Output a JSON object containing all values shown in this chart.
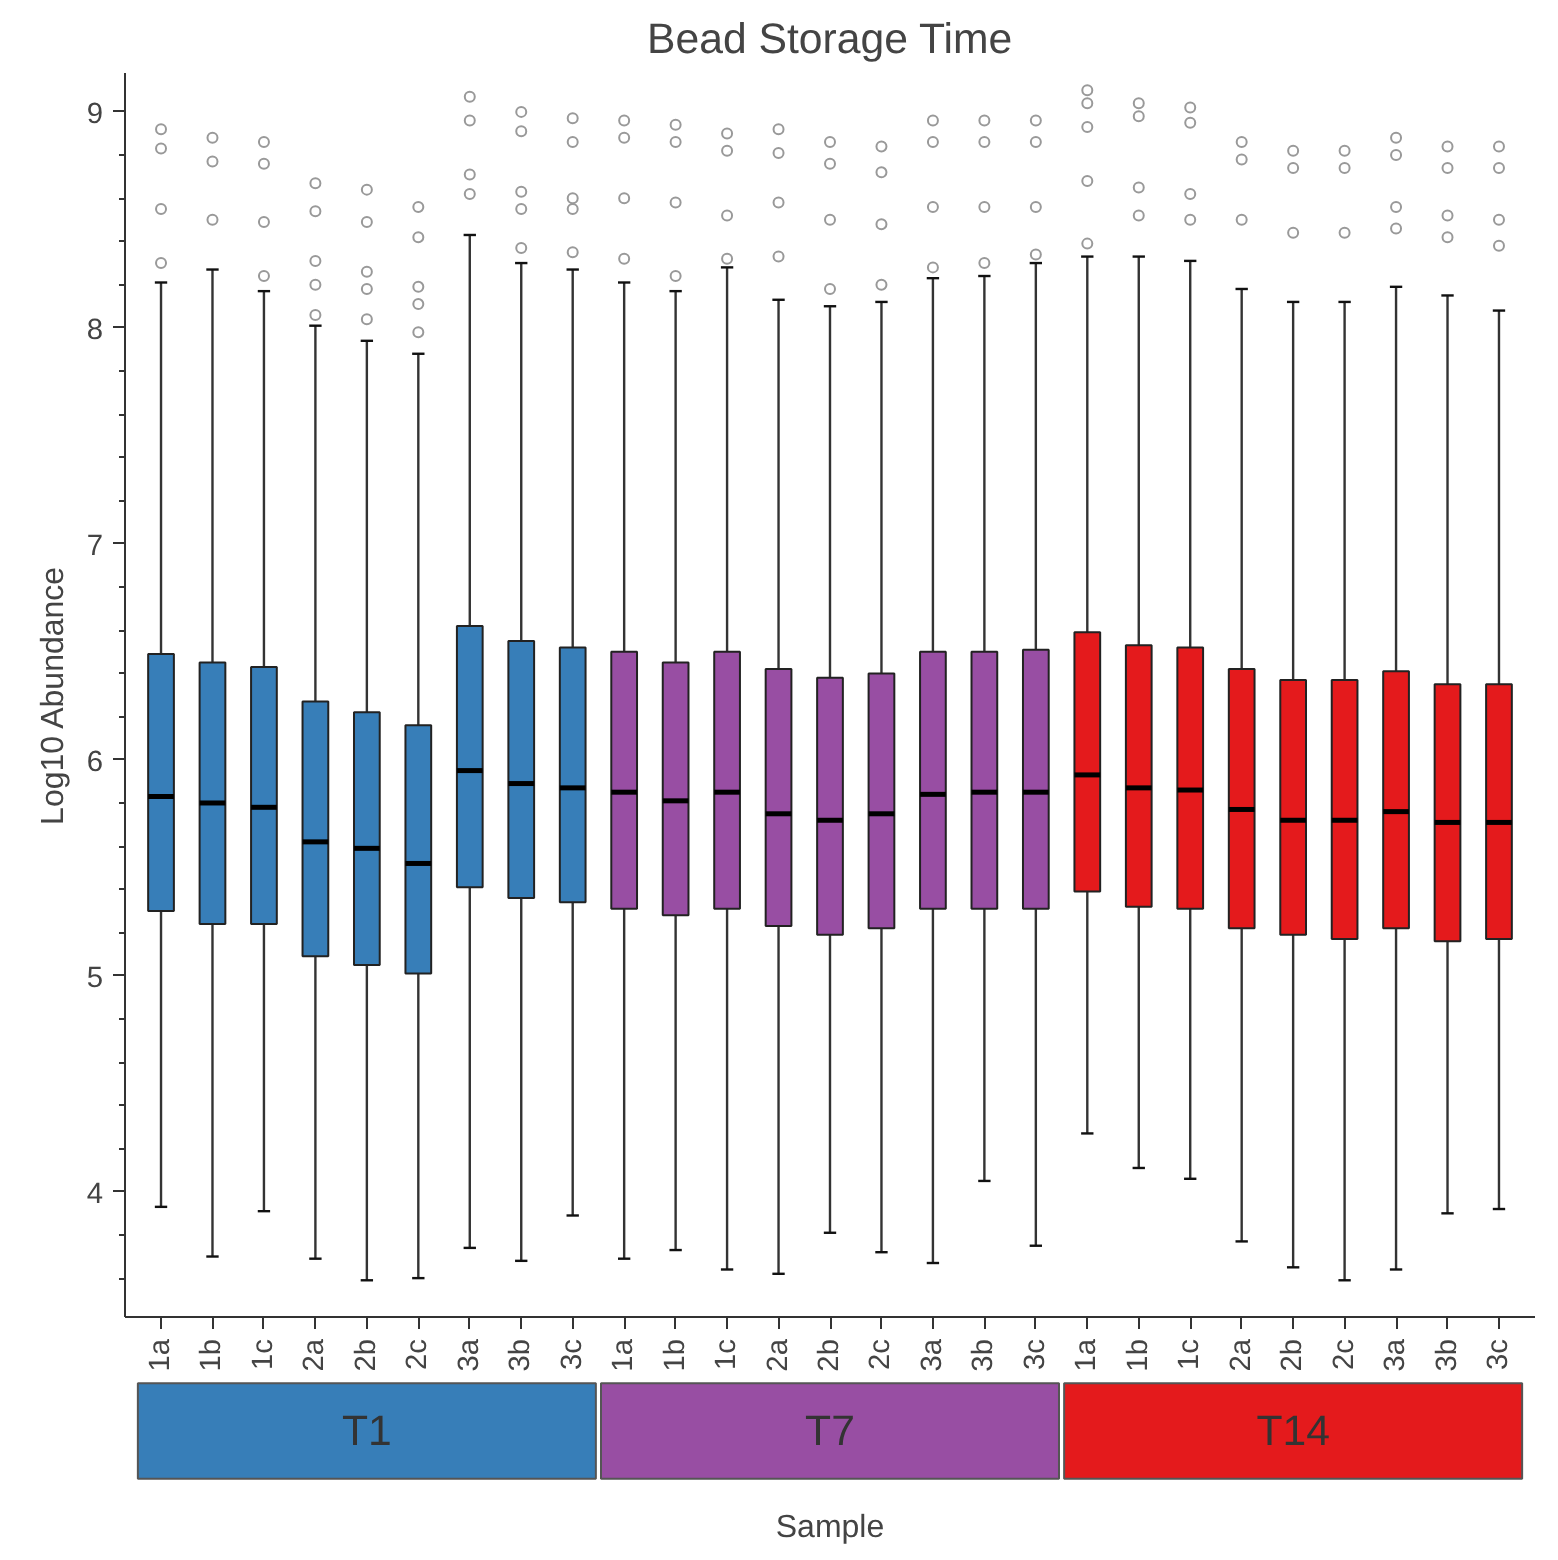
{
  "chart_data": {
    "type": "box",
    "title": "Bead Storage Time",
    "xlabel": "Sample",
    "ylabel": "Log10 Abundance",
    "categories": [
      "1a",
      "1b",
      "1c",
      "2a",
      "2b",
      "2c",
      "3a",
      "3b",
      "3c",
      "1a",
      "1b",
      "1c",
      "2a",
      "2b",
      "2c",
      "3a",
      "3b",
      "3c",
      "1a",
      "1b",
      "1c",
      "2a",
      "2b",
      "2c",
      "3a",
      "3b",
      "3c"
    ],
    "ylim": [
      3.42,
      9.18
    ],
    "yticks": [
      {
        "value": 3.6,
        "label": null
      },
      {
        "value": 3.8,
        "label": null
      },
      4,
      {
        "value": 4.2,
        "label": null
      },
      {
        "value": 4.4,
        "label": null
      },
      {
        "value": 4.6,
        "label": null
      },
      {
        "value": 4.8,
        "label": null
      },
      5,
      {
        "value": 5.2,
        "label": null
      },
      {
        "value": 5.4,
        "label": null
      },
      {
        "value": 5.6,
        "label": null
      },
      {
        "value": 5.8,
        "label": null
      },
      6,
      {
        "value": 6.2,
        "label": null
      },
      {
        "value": 6.4,
        "label": null
      },
      {
        "value": 6.6,
        "label": null
      },
      {
        "value": 6.8,
        "label": null
      },
      7,
      {
        "value": 7.2,
        "label": null
      },
      {
        "value": 7.4,
        "label": null
      },
      {
        "value": 7.6,
        "label": null
      },
      {
        "value": 7.8,
        "label": null
      },
      8,
      {
        "value": 8.2,
        "label": null
      },
      {
        "value": 8.4,
        "label": null
      },
      {
        "value": 8.6,
        "label": null
      },
      {
        "value": 8.8,
        "label": null
      },
      9
    ],
    "grid": false,
    "marker": "circle",
    "series": [
      {
        "name": "T1",
        "color": "#377eb8",
        "boxes": [
          {
            "low": 3.93,
            "q1": 5.3,
            "median": 5.83,
            "q3": 6.49,
            "high": 8.21,
            "outliers": [
              8.92,
              8.83,
              8.55,
              8.3
            ]
          },
          {
            "low": 3.7,
            "q1": 5.24,
            "median": 5.8,
            "q3": 6.45,
            "high": 8.27,
            "outliers": [
              8.88,
              8.77,
              8.5
            ]
          },
          {
            "low": 3.91,
            "q1": 5.24,
            "median": 5.78,
            "q3": 6.43,
            "high": 8.17,
            "outliers": [
              8.86,
              8.76,
              8.49,
              8.24
            ]
          },
          {
            "low": 3.69,
            "q1": 5.09,
            "median": 5.62,
            "q3": 6.27,
            "high": 8.01,
            "outliers": [
              8.67,
              8.54,
              8.31,
              8.2,
              8.06
            ]
          },
          {
            "low": 3.59,
            "q1": 5.05,
            "median": 5.59,
            "q3": 6.22,
            "high": 7.94,
            "outliers": [
              8.64,
              8.49,
              8.26,
              8.18,
              8.04
            ]
          },
          {
            "low": 3.6,
            "q1": 5.01,
            "median": 5.52,
            "q3": 6.16,
            "high": 7.88,
            "outliers": [
              8.56,
              8.42,
              8.19,
              8.11,
              7.98
            ]
          },
          {
            "low": 3.74,
            "q1": 5.41,
            "median": 5.95,
            "q3": 6.62,
            "high": 8.43,
            "outliers": [
              9.07,
              8.96,
              8.71,
              8.62
            ]
          },
          {
            "low": 3.68,
            "q1": 5.36,
            "median": 5.89,
            "q3": 6.55,
            "high": 8.3,
            "outliers": [
              9.0,
              8.91,
              8.63,
              8.55,
              8.37
            ]
          },
          {
            "low": 3.89,
            "q1": 5.34,
            "median": 5.87,
            "q3": 6.52,
            "high": 8.27,
            "outliers": [
              8.97,
              8.86,
              8.6,
              8.55,
              8.35
            ]
          },
          null,
          null,
          null,
          null,
          null,
          null,
          null,
          null,
          null,
          null,
          null,
          null,
          null,
          null,
          null,
          null,
          null,
          null
        ]
      },
      {
        "name": "T7",
        "color": "#984ea3",
        "boxes": [
          null,
          null,
          null,
          null,
          null,
          null,
          null,
          null,
          null,
          {
            "low": 3.69,
            "q1": 5.31,
            "median": 5.85,
            "q3": 6.5,
            "high": 8.21,
            "outliers": [
              8.96,
              8.88,
              8.6,
              8.32
            ]
          },
          {
            "low": 3.73,
            "q1": 5.28,
            "median": 5.81,
            "q3": 6.45,
            "high": 8.17,
            "outliers": [
              8.94,
              8.86,
              8.58,
              8.24
            ]
          },
          {
            "low": 3.64,
            "q1": 5.31,
            "median": 5.85,
            "q3": 6.5,
            "high": 8.28,
            "outliers": [
              8.9,
              8.82,
              8.52,
              8.32
            ]
          },
          {
            "low": 3.62,
            "q1": 5.23,
            "median": 5.75,
            "q3": 6.42,
            "high": 8.13,
            "outliers": [
              8.92,
              8.81,
              8.58,
              8.33
            ]
          },
          {
            "low": 3.81,
            "q1": 5.19,
            "median": 5.72,
            "q3": 6.38,
            "high": 8.1,
            "outliers": [
              8.86,
              8.76,
              8.5,
              8.18
            ]
          },
          {
            "low": 3.72,
            "q1": 5.22,
            "median": 5.75,
            "q3": 6.4,
            "high": 8.12,
            "outliers": [
              8.84,
              8.72,
              8.48,
              8.2
            ]
          },
          {
            "low": 3.67,
            "q1": 5.31,
            "median": 5.84,
            "q3": 6.5,
            "high": 8.23,
            "outliers": [
              8.96,
              8.86,
              8.56,
              8.28
            ]
          },
          {
            "low": 4.05,
            "q1": 5.31,
            "median": 5.85,
            "q3": 6.5,
            "high": 8.24,
            "outliers": [
              8.96,
              8.86,
              8.56,
              8.3
            ]
          },
          {
            "low": 3.75,
            "q1": 5.31,
            "median": 5.85,
            "q3": 6.51,
            "high": 8.3,
            "outliers": [
              8.96,
              8.86,
              8.56,
              8.34
            ]
          },
          null,
          null,
          null,
          null,
          null,
          null,
          null,
          null,
          null
        ]
      },
      {
        "name": "T14",
        "color": "#e41a1c",
        "boxes": [
          null,
          null,
          null,
          null,
          null,
          null,
          null,
          null,
          null,
          null,
          null,
          null,
          null,
          null,
          null,
          null,
          null,
          null,
          {
            "low": 4.27,
            "q1": 5.39,
            "median": 5.93,
            "q3": 6.59,
            "high": 8.33,
            "outliers": [
              9.1,
              9.04,
              8.93,
              8.68,
              8.39
            ]
          },
          {
            "low": 4.11,
            "q1": 5.32,
            "median": 5.87,
            "q3": 6.53,
            "high": 8.33,
            "outliers": [
              9.04,
              8.98,
              8.65,
              8.52
            ]
          },
          {
            "low": 4.06,
            "q1": 5.31,
            "median": 5.86,
            "q3": 6.52,
            "high": 8.31,
            "outliers": [
              9.02,
              8.95,
              8.62,
              8.5
            ]
          },
          {
            "low": 3.77,
            "q1": 5.22,
            "median": 5.77,
            "q3": 6.42,
            "high": 8.18,
            "outliers": [
              8.86,
              8.78,
              8.5
            ]
          },
          {
            "low": 3.65,
            "q1": 5.19,
            "median": 5.72,
            "q3": 6.37,
            "high": 8.12,
            "outliers": [
              8.82,
              8.74,
              8.44
            ]
          },
          {
            "low": 3.59,
            "q1": 5.17,
            "median": 5.72,
            "q3": 6.37,
            "high": 8.12,
            "outliers": [
              8.82,
              8.74,
              8.44
            ]
          },
          {
            "low": 3.64,
            "q1": 5.22,
            "median": 5.76,
            "q3": 6.41,
            "high": 8.19,
            "outliers": [
              8.88,
              8.8,
              8.56,
              8.46
            ]
          },
          {
            "low": 3.9,
            "q1": 5.16,
            "median": 5.71,
            "q3": 6.35,
            "high": 8.15,
            "outliers": [
              8.84,
              8.74,
              8.52,
              8.42
            ]
          },
          {
            "low": 3.92,
            "q1": 5.17,
            "median": 5.71,
            "q3": 6.35,
            "high": 8.08,
            "outliers": [
              8.84,
              8.74,
              8.5,
              8.38
            ]
          }
        ]
      }
    ]
  }
}
